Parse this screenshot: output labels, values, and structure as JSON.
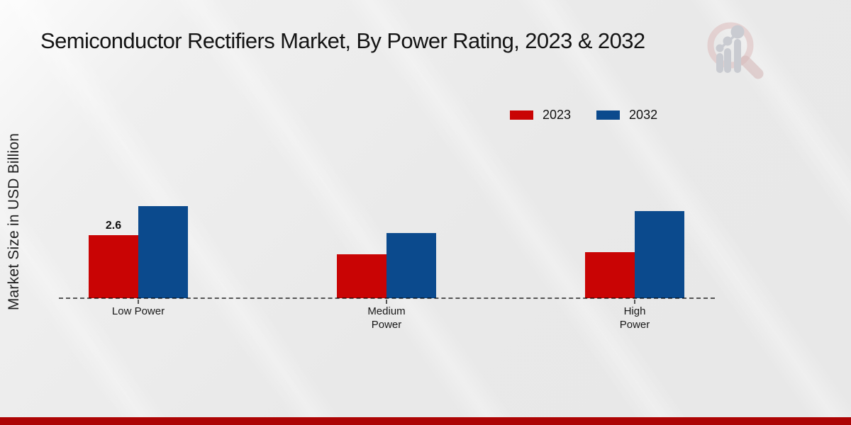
{
  "header": {
    "title": "Semiconductor Rectifiers Market, By Power Rating, 2023 & 2032"
  },
  "watermark": {
    "icon": "market-research-magnifier-logo"
  },
  "footer": {
    "accent_color": "#ad0404"
  },
  "chart_data": {
    "type": "bar",
    "title": "Semiconductor Rectifiers Market, By Power Rating, 2023 & 2032",
    "xlabel": "",
    "ylabel": "Market Size in USD Billion",
    "categories": [
      "Low Power",
      "Medium Power",
      "High Power"
    ],
    "categories_display": [
      [
        "Low Power"
      ],
      [
        "Medium",
        "Power"
      ],
      [
        "High",
        "Power"
      ]
    ],
    "series": [
      {
        "name": "2023",
        "color": "#c90404",
        "values": [
          2.6,
          1.8,
          1.9
        ]
      },
      {
        "name": "2032",
        "color": "#0b4a8d",
        "values": [
          3.8,
          2.7,
          3.6
        ]
      }
    ],
    "bar_labels": [
      {
        "series": 0,
        "category": 0,
        "text": "2.6"
      }
    ],
    "ylim": [
      0,
      4.2
    ],
    "grid": false,
    "legend_position": "top-right",
    "axis_style": "dashed-baseline"
  }
}
